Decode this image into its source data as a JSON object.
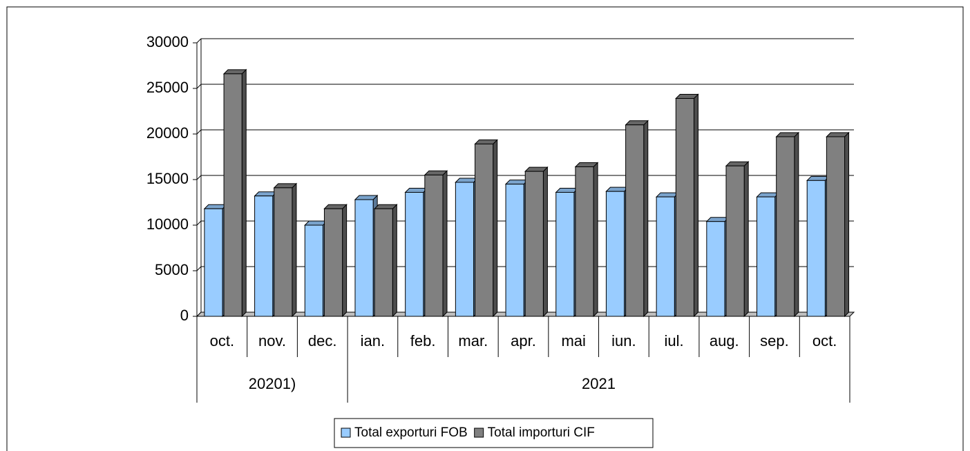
{
  "chart_data": {
    "type": "bar",
    "three_d": true,
    "categories": [
      "oct.",
      "nov.",
      "dec.",
      "ian.",
      "feb.",
      "mar.",
      "apr.",
      "mai",
      "iun.",
      "iul.",
      "aug.",
      "sep.",
      "oct."
    ],
    "groups": [
      {
        "label": "20201)",
        "count": 3
      },
      {
        "label": "2021",
        "count": 10
      }
    ],
    "series": [
      {
        "name": "Total exporturi FOB",
        "color": "#99ccff",
        "values": [
          11800,
          13200,
          10000,
          12800,
          13600,
          14700,
          14500,
          13600,
          13700,
          13100,
          10400,
          13100,
          14900
        ]
      },
      {
        "name": "Total importuri CIF",
        "color": "#808080",
        "values": [
          26600,
          14100,
          11800,
          11800,
          15500,
          18900,
          15900,
          16400,
          21000,
          23900,
          16500,
          19700,
          19700
        ]
      }
    ],
    "ylim": [
      0,
      30000
    ],
    "yticks": [
      0,
      5000,
      10000,
      15000,
      20000,
      25000,
      30000
    ],
    "grid": true,
    "legend": "bottom"
  }
}
